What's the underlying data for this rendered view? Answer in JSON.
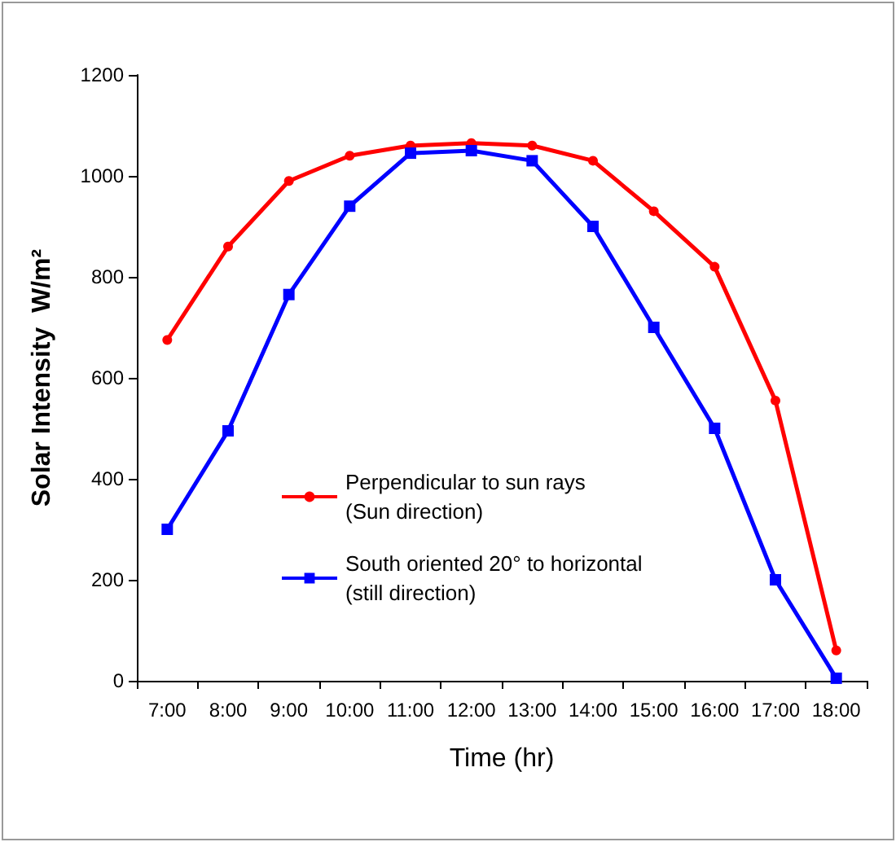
{
  "chart_data": {
    "type": "line",
    "xlabel": "Time (hr)",
    "ylabel": "Solar Intensity  W/m²",
    "categories": [
      "7:00",
      "8:00",
      "9:00",
      "10:00",
      "11:00",
      "12:00",
      "13:00",
      "14:00",
      "15:00",
      "16:00",
      "17:00",
      "18:00"
    ],
    "series": [
      {
        "name": "Perpendicular to sun rays\n(Sun direction)",
        "color": "#ff0000",
        "marker": "circle",
        "values": [
          675,
          860,
          990,
          1040,
          1060,
          1065,
          1060,
          1030,
          930,
          820,
          555,
          60
        ]
      },
      {
        "name": "South oriented 20° to horizontal\n(still direction)",
        "color": "#0000ff",
        "marker": "square",
        "values": [
          300,
          495,
          765,
          940,
          1045,
          1050,
          1030,
          900,
          700,
          500,
          200,
          5
        ]
      }
    ],
    "ylim": [
      0,
      1200
    ],
    "yticks": [
      0,
      200,
      400,
      600,
      800,
      1000,
      1200
    ],
    "grid": false,
    "legend": "bottom left",
    "line_style": "solid"
  }
}
